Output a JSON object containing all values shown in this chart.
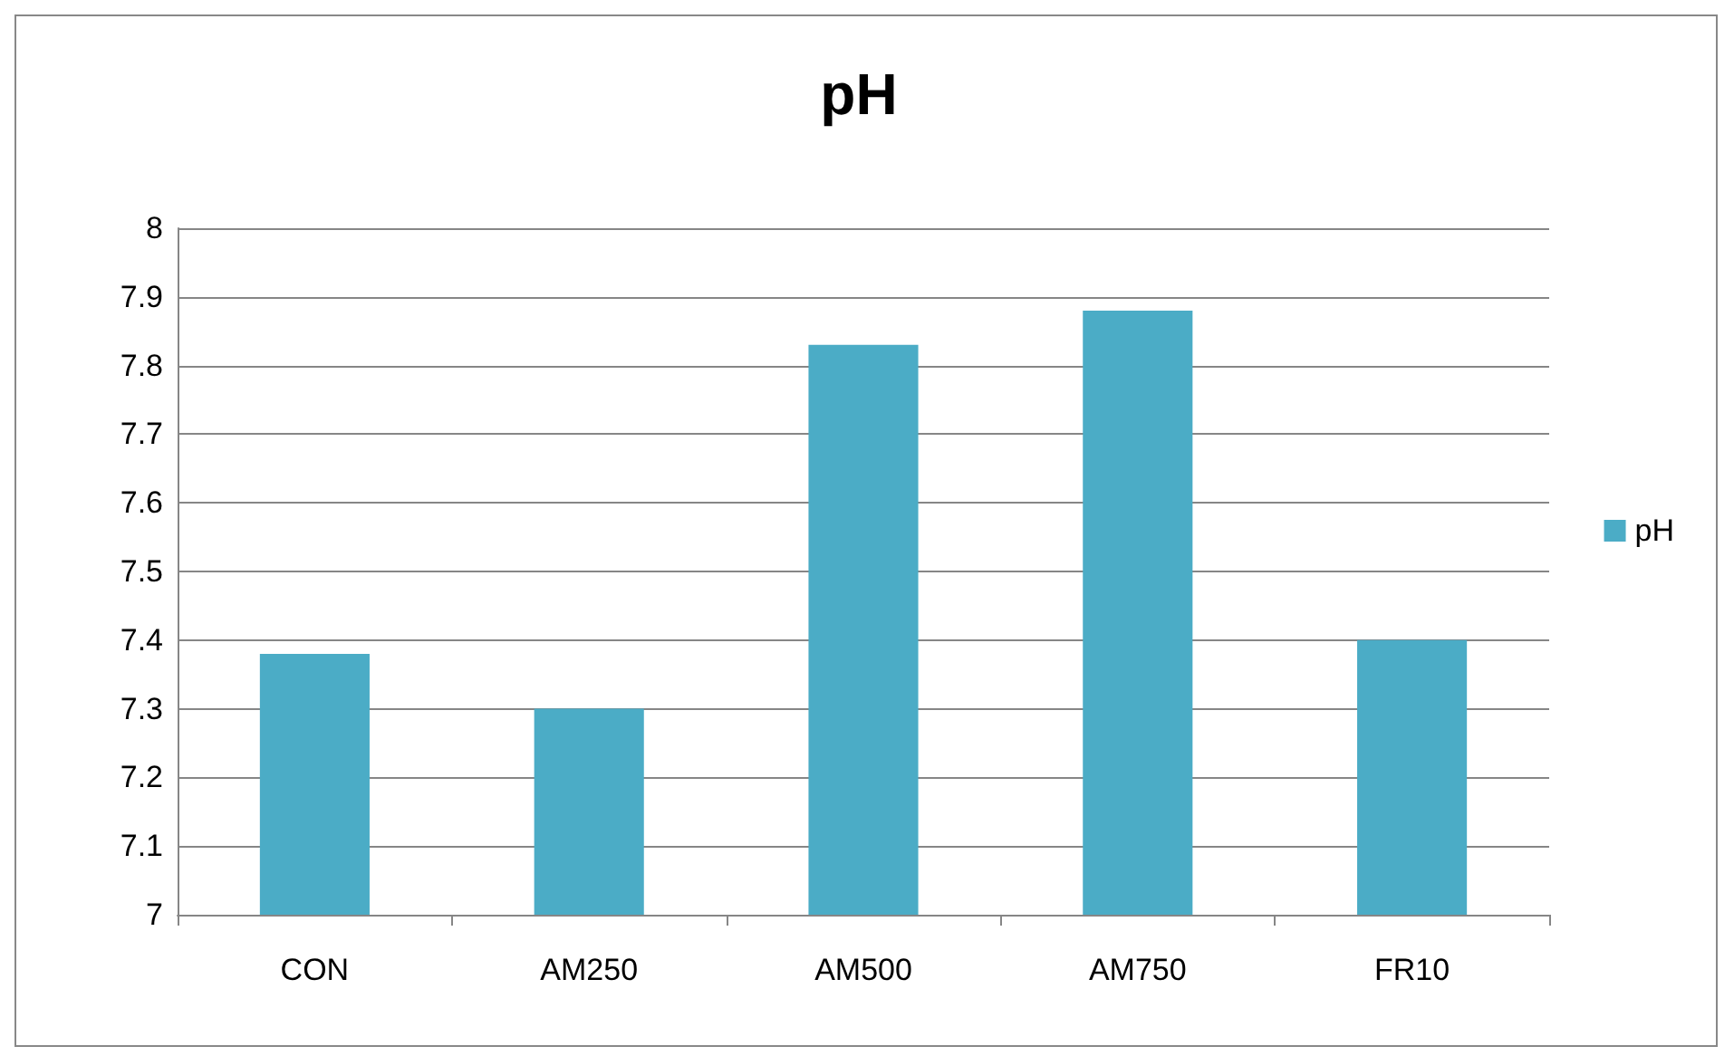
{
  "chart_data": {
    "type": "bar",
    "title": "pH",
    "categories": [
      "CON",
      "AM250",
      "AM500",
      "AM750",
      "FR10"
    ],
    "series": [
      {
        "name": "pH",
        "color": "#4bacc6",
        "values": [
          7.38,
          7.3,
          7.83,
          7.88,
          7.4
        ]
      }
    ],
    "ylim": [
      7,
      8
    ],
    "yticks": [
      7,
      7.1,
      7.2,
      7.3,
      7.4,
      7.5,
      7.6,
      7.7,
      7.8,
      7.9,
      8
    ],
    "grid": "y",
    "legend": "right"
  }
}
